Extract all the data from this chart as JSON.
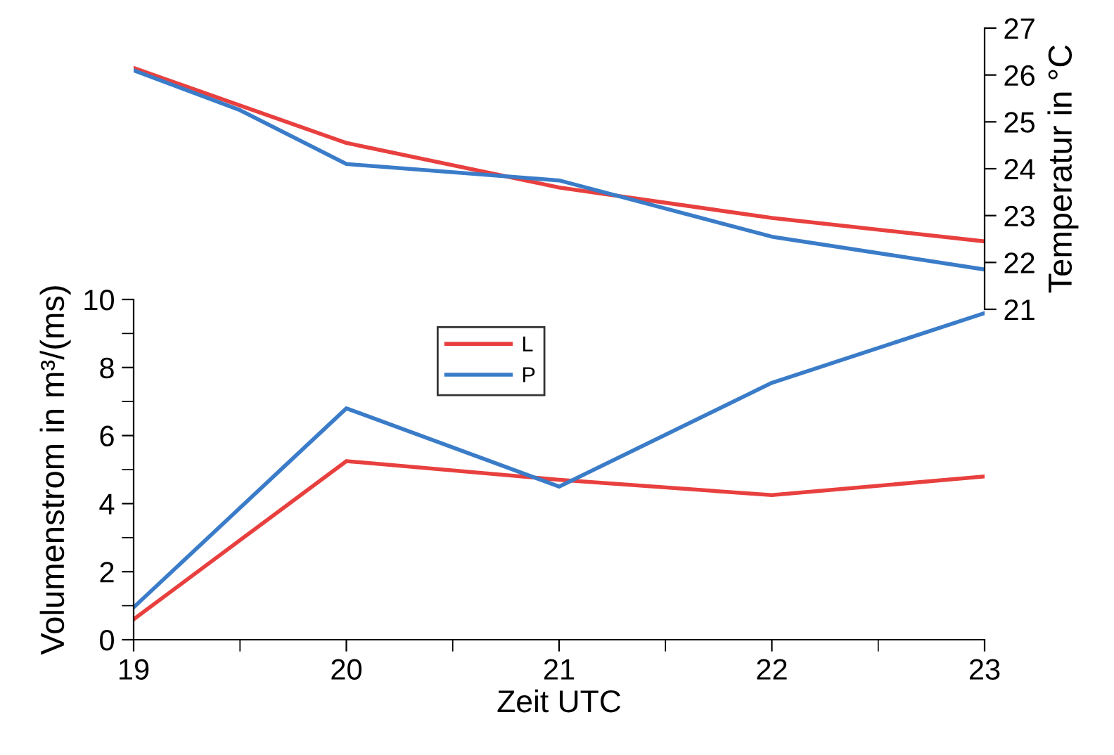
{
  "chart_data": [
    {
      "type": "line",
      "ylabel": "Temperatur in °C",
      "xlim": [
        19,
        23
      ],
      "ylim": [
        21,
        27
      ],
      "yticks": [
        21,
        22,
        23,
        24,
        25,
        26,
        27
      ],
      "tick_labels": "y",
      "grid": false,
      "legend": false,
      "series": [
        {
          "color": "#e8403f",
          "x": [
            19,
            20,
            21,
            22,
            23
          ],
          "values": [
            26.15,
            24.55,
            23.6,
            22.95,
            22.45
          ]
        },
        {
          "color": "#3a7cc8",
          "x": [
            19,
            19.5,
            20,
            21,
            22,
            23
          ],
          "values": [
            26.1,
            25.25,
            24.1,
            23.75,
            22.55,
            21.85
          ]
        }
      ]
    },
    {
      "type": "line",
      "xlabel": "Zeit UTC",
      "ylabel": "Volumenstrom in m³/(ms)",
      "xlim": [
        19,
        23
      ],
      "xticks": [
        19,
        20,
        21,
        22,
        23
      ],
      "ylim": [
        0,
        10
      ],
      "yticks": [
        0,
        2,
        4,
        6,
        8,
        10
      ],
      "grid": false,
      "legend": "top",
      "x": [
        19,
        20,
        21,
        22,
        23
      ],
      "series": [
        {
          "name": "L",
          "color": "#e8403f",
          "values": [
            0.6,
            5.25,
            4.7,
            4.25,
            4.8
          ]
        },
        {
          "name": "P",
          "color": "#3a7cc8",
          "values": [
            0.95,
            6.8,
            4.5,
            7.55,
            9.6
          ]
        }
      ]
    }
  ]
}
